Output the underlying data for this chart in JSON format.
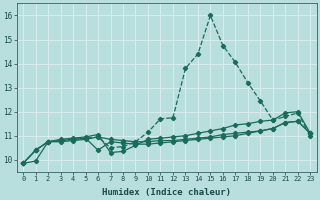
{
  "xlabel": "Humidex (Indice chaleur)",
  "xlim": [
    -0.5,
    23.5
  ],
  "ylim": [
    9.5,
    16.5
  ],
  "yticks": [
    10,
    11,
    12,
    13,
    14,
    15,
    16
  ],
  "xticks": [
    0,
    1,
    2,
    3,
    4,
    5,
    6,
    7,
    8,
    9,
    10,
    11,
    12,
    13,
    14,
    15,
    16,
    17,
    18,
    19,
    20,
    21,
    22,
    23
  ],
  "background_color": "#b8dede",
  "grid_color": "#d8eeee",
  "line_color": "#1a6b5a",
  "lines": [
    {
      "x": [
        0,
        1,
        2,
        3,
        4,
        5,
        6,
        7,
        8,
        9,
        10,
        11,
        12,
        13,
        14,
        15,
        16,
        17,
        18,
        19,
        20,
        21,
        22,
        23
      ],
      "y": [
        9.85,
        10.4,
        10.75,
        10.8,
        10.85,
        10.9,
        10.95,
        10.5,
        10.55,
        10.75,
        11.15,
        11.7,
        11.75,
        13.8,
        14.4,
        16.0,
        14.75,
        14.05,
        13.2,
        12.45,
        11.65,
        11.8,
        11.95,
        11.0
      ],
      "marker": "D",
      "markersize": 2.2,
      "linewidth": 0.9,
      "linestyle": "--"
    },
    {
      "x": [
        0,
        1,
        2,
        3,
        4,
        5,
        6,
        7,
        8,
        9,
        10,
        11,
        12,
        13,
        14,
        15,
        16,
        17,
        18,
        19,
        20,
        21,
        22,
        23
      ],
      "y": [
        9.85,
        10.4,
        10.75,
        10.85,
        10.9,
        10.95,
        11.05,
        10.3,
        10.35,
        10.6,
        10.85,
        10.9,
        10.95,
        11.0,
        11.1,
        11.2,
        11.3,
        11.45,
        11.5,
        11.6,
        11.65,
        11.95,
        12.0,
        11.1
      ],
      "marker": "D",
      "markersize": 2.2,
      "linewidth": 0.9,
      "linestyle": "-"
    },
    {
      "x": [
        0,
        1,
        2,
        3,
        4,
        5,
        6,
        7,
        8,
        9,
        10,
        11,
        12,
        13,
        14,
        15,
        16,
        17,
        18,
        19,
        20,
        21,
        22,
        23
      ],
      "y": [
        9.85,
        10.4,
        10.75,
        10.8,
        10.85,
        10.9,
        10.4,
        10.75,
        10.7,
        10.65,
        10.65,
        10.7,
        10.75,
        10.8,
        10.85,
        10.9,
        10.95,
        11.0,
        11.1,
        11.2,
        11.3,
        11.55,
        11.6,
        11.1
      ],
      "marker": "D",
      "markersize": 2.2,
      "linewidth": 0.9,
      "linestyle": "-"
    },
    {
      "x": [
        0,
        1,
        2,
        3,
        4,
        5,
        6,
        7,
        8,
        9,
        10,
        11,
        12,
        13,
        14,
        15,
        16,
        17,
        18,
        19,
        20,
        21,
        22,
        23
      ],
      "y": [
        9.85,
        9.95,
        10.75,
        10.75,
        10.8,
        10.85,
        10.95,
        10.85,
        10.8,
        10.75,
        10.75,
        10.8,
        10.8,
        10.85,
        10.9,
        10.95,
        11.05,
        11.1,
        11.15,
        11.2,
        11.3,
        11.55,
        11.6,
        11.1
      ],
      "marker": "D",
      "markersize": 2.2,
      "linewidth": 0.9,
      "linestyle": "-"
    }
  ]
}
